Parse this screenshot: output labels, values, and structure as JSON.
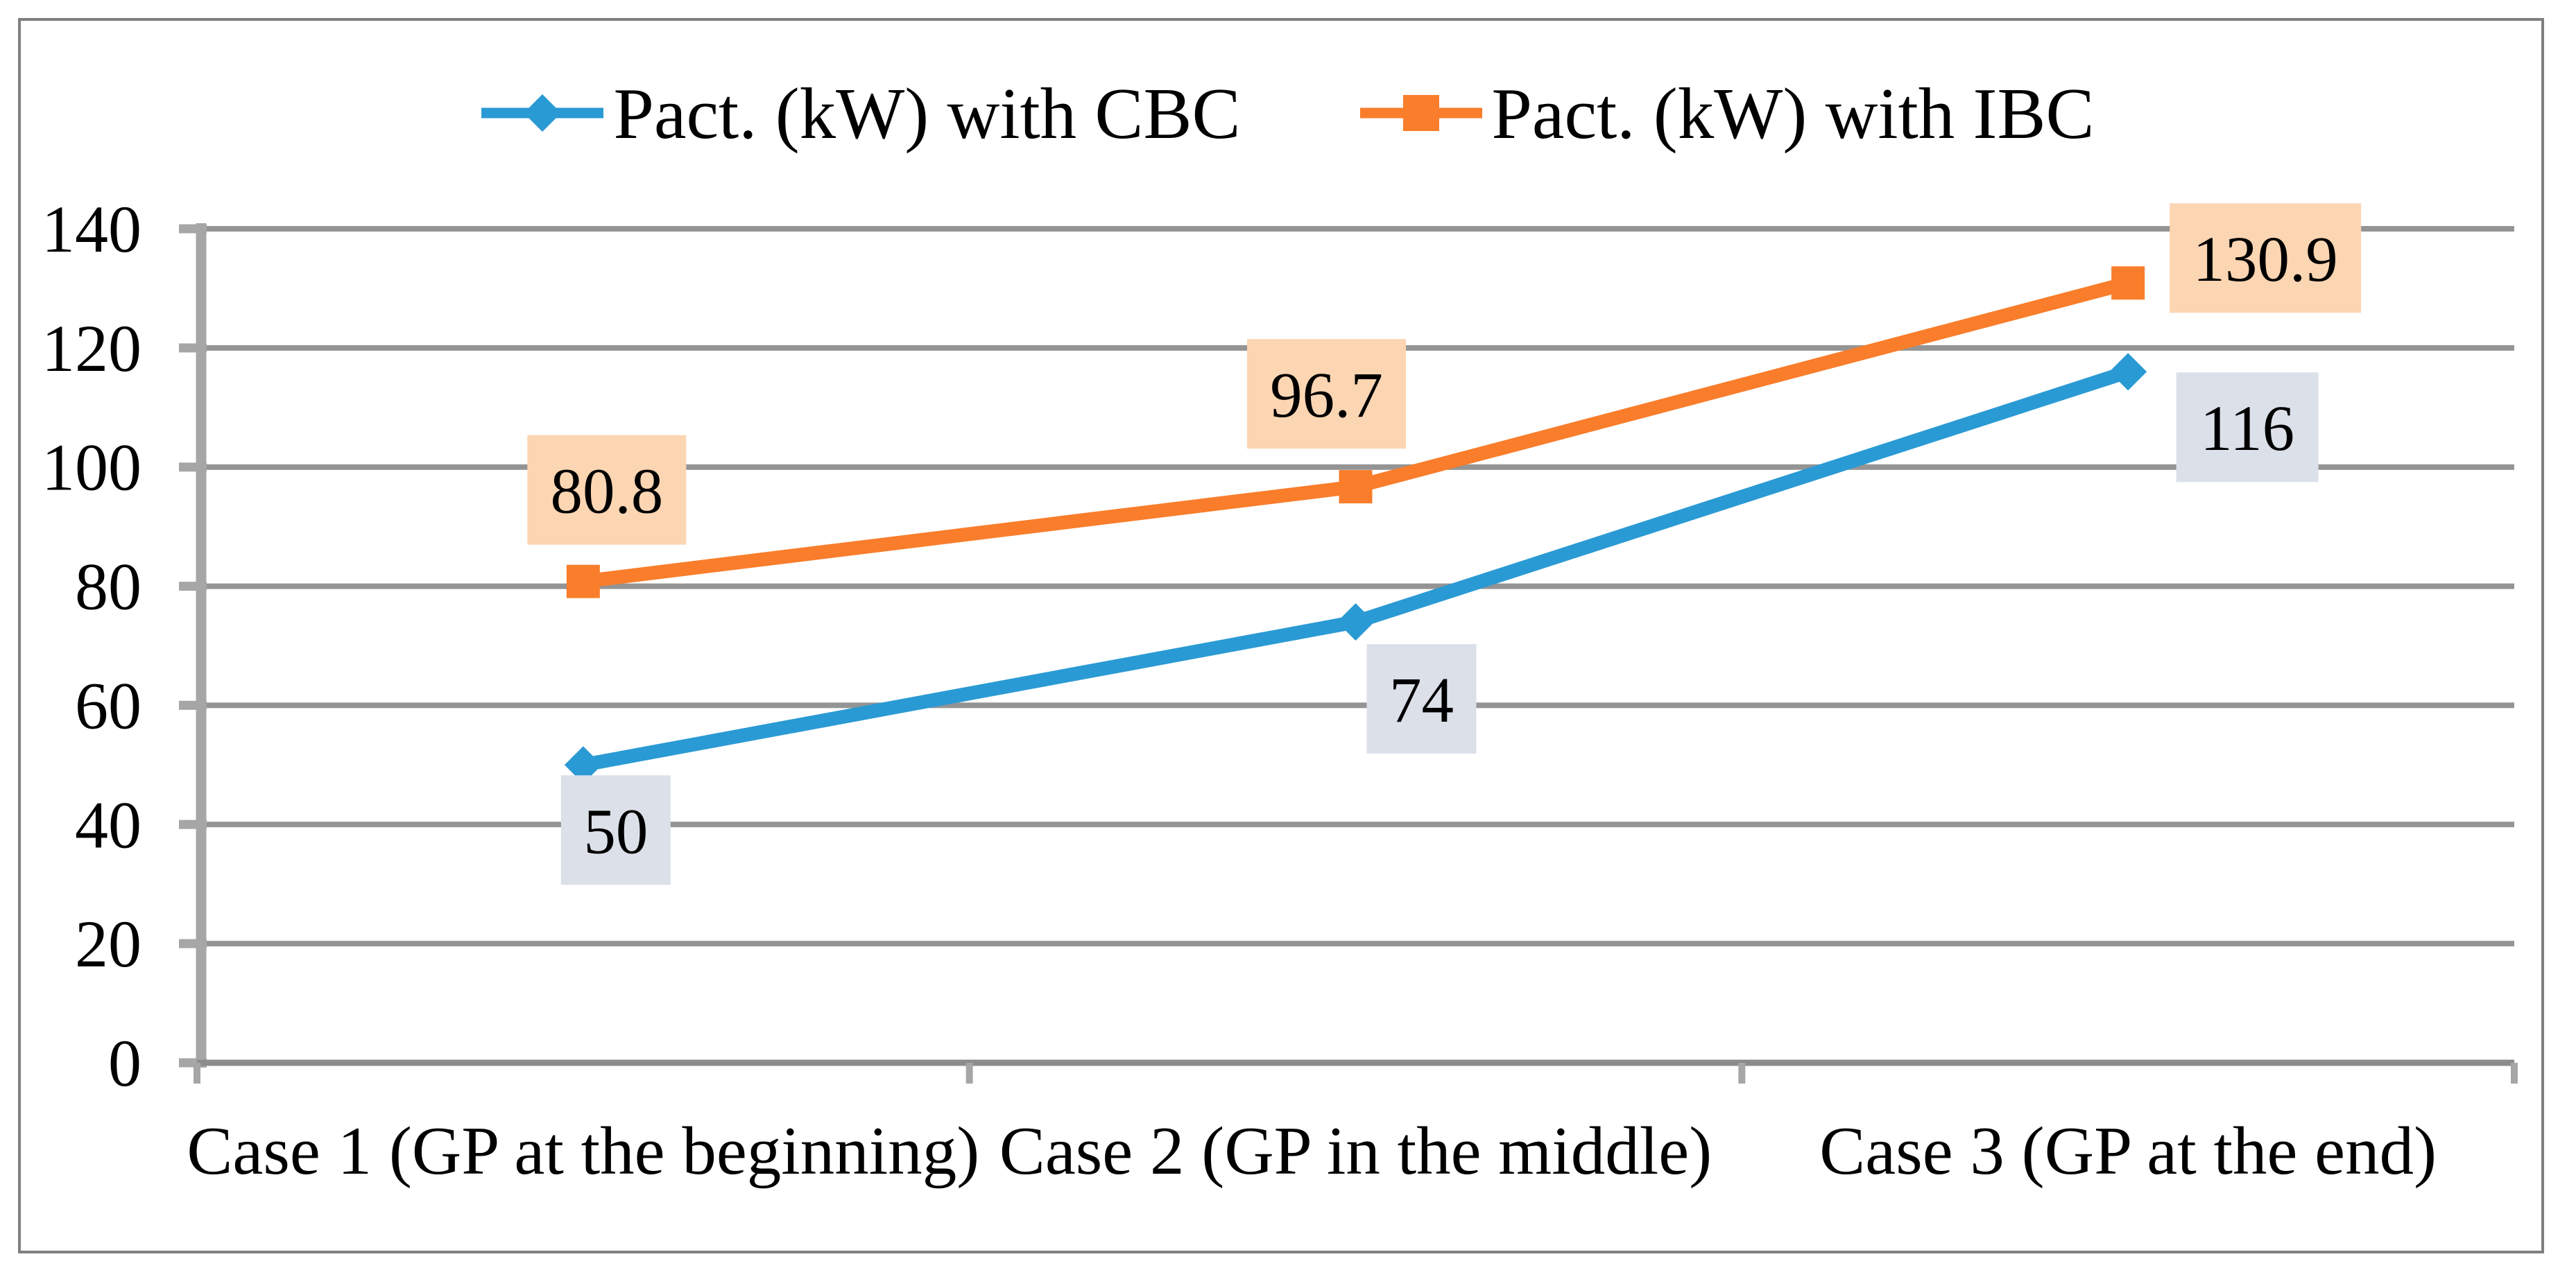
{
  "chart_data": {
    "type": "line",
    "title": "",
    "xlabel": "",
    "ylabel": "",
    "categories": [
      "Case 1 (GP at the beginning)",
      "Case 2 (GP in the middle)",
      "Case 3 (GP at the end)"
    ],
    "series": [
      {
        "name": "Pact. (kW) with CBC",
        "values": [
          50,
          74,
          116
        ],
        "data_labels": [
          "50",
          "74",
          "116"
        ],
        "color": "#2A9AD4",
        "marker": "diamond",
        "label_bg": "#DBE0E9",
        "label_offsets": [
          [
            47,
            94
          ],
          [
            95,
            111
          ],
          [
            172,
            80
          ]
        ]
      },
      {
        "name": "Pact. (kW) with IBC",
        "values": [
          80.8,
          96.7,
          130.9
        ],
        "data_labels": [
          "80.8",
          "96.7",
          "130.9"
        ],
        "color": "#F97D2B",
        "marker": "square",
        "label_bg": "#FCD5B3",
        "label_offsets": [
          [
            34,
            -132
          ],
          [
            -42,
            -134
          ],
          [
            198,
            -36
          ]
        ]
      }
    ],
    "ylim": [
      0,
      140
    ],
    "yticks": [
      0,
      20,
      40,
      60,
      80,
      100,
      120,
      140
    ],
    "grid": "horizontal-only",
    "legend_position": "top-center",
    "colors": {
      "gridline": "#949494",
      "axis_line": "#8C8C8C",
      "axis_bar": "#A6A6A6",
      "tick": "#A6A6A6",
      "frame_border": "#7F7F7F",
      "text": "#000000",
      "background": "#FFFFFF"
    }
  }
}
